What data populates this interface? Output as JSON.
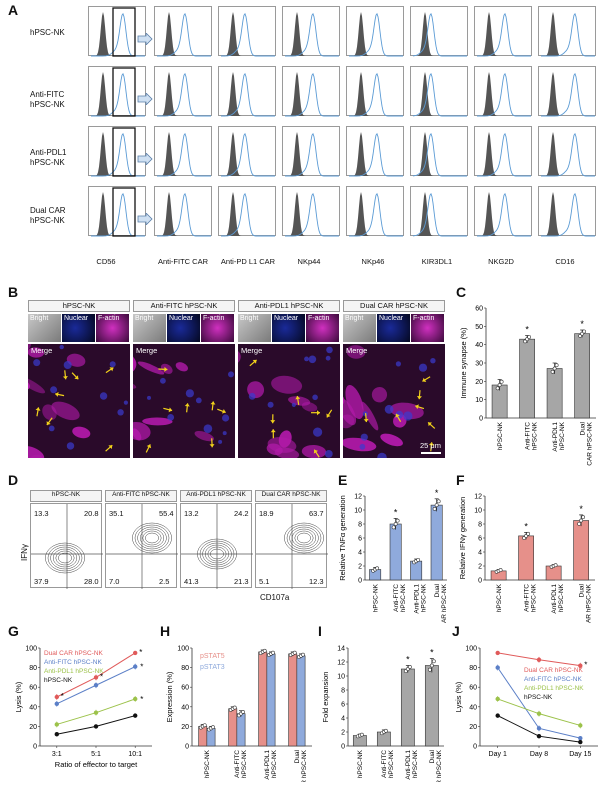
{
  "panel_labels": [
    "A",
    "B",
    "C",
    "D",
    "E",
    "F",
    "G",
    "H",
    "I",
    "J"
  ],
  "panelA": {
    "rows": [
      "hPSC-NK",
      "Anti-FITC\nhPSC-NK",
      "Anti-PDL1\nhPSC-NK",
      "Dual CAR\nhPSC-NK"
    ],
    "columns": [
      "CD56",
      "Anti-FITC CAR",
      "Anti-PD L1 CAR",
      "NKp44",
      "NKp46",
      "KIR3DL1",
      "NKG2D",
      "CD16"
    ],
    "arrow_icon": "right-arrow-icon",
    "colors": {
      "filled": "#555555",
      "line": "#5b9bd5"
    }
  },
  "panelB": {
    "columns": [
      "hPSC-NK",
      "Anti-FITC hPSC-NK",
      "Anti-PDL1 hPSC-NK",
      "Dual CAR hPSC-NK"
    ],
    "sub_labels": [
      "Bright",
      "Nuclear",
      "F-actin"
    ],
    "merge_label": "Merge",
    "scale_bar": "25 μm",
    "colors": {
      "magenta": "#b01aa8",
      "bg": "#2a0a2a",
      "nuclear": "#0a1a66",
      "arrow": "#f2d21b"
    }
  },
  "panelD": {
    "columns": [
      "hPSC-NK",
      "Anti-FITC hPSC-NK",
      "Anti-PDL1 hPSC-NK",
      "Dual CAR hPSC-NK"
    ],
    "quadrants": [
      [
        "13.3",
        "20.8",
        "37.9",
        "28.0"
      ],
      [
        "35.1",
        "55.4",
        "7.0",
        "2.5"
      ],
      [
        "13.2",
        "24.2",
        "41.3",
        "21.3"
      ],
      [
        "18.9",
        "63.7",
        "5.1",
        "12.3"
      ]
    ],
    "ylabel": "IFNγ",
    "xlabel": "CD107a"
  },
  "chart_data": [
    {
      "panel": "C",
      "type": "bar",
      "categories": [
        "hPSC-NK",
        "Anti-FITC hPSC-NK",
        "Anti-PDL1 hPSC-NK",
        "Dual CAR hPSC-NK"
      ],
      "values": [
        18,
        43,
        27,
        46
      ],
      "errors": [
        3,
        2,
        3,
        2
      ],
      "significance": [
        "",
        "*",
        "",
        "*"
      ],
      "ylabel": "Immune synapse (%)",
      "ylim": [
        0,
        60
      ],
      "yticks": [
        0,
        10,
        20,
        30,
        40,
        50,
        60
      ],
      "color": "#a6a6a6"
    },
    {
      "panel": "E",
      "type": "bar",
      "categories": [
        "hPSC-NK",
        "Anti-FITC hPSC-NK",
        "Anti-PDL1 hPSC-NK",
        "Dual CAR hPSC-NK"
      ],
      "values": [
        1.5,
        8.0,
        2.7,
        10.7
      ],
      "errors": [
        0.3,
        0.8,
        0.3,
        0.9
      ],
      "significance": [
        "",
        "*",
        "",
        "*"
      ],
      "ylabel": "Relative TNFα generation",
      "ylim": [
        0,
        12
      ],
      "yticks": [
        0,
        2,
        4,
        6,
        8,
        10,
        12
      ],
      "color": "#8faadc"
    },
    {
      "panel": "F",
      "type": "bar",
      "categories": [
        "hPSC-NK",
        "Anti-FITC hPSC-NK",
        "Anti-PDL1 hPSC-NK",
        "Dual CAR hPSC-NK"
      ],
      "values": [
        1.3,
        6.3,
        2.0,
        8.5
      ],
      "errors": [
        0.2,
        0.5,
        0.2,
        0.8
      ],
      "significance": [
        "",
        "*",
        "",
        "*"
      ],
      "ylabel": "Relative IFNγ generation",
      "ylim": [
        0,
        12
      ],
      "yticks": [
        0,
        2,
        4,
        6,
        8,
        10,
        12
      ],
      "color": "#e6908a"
    },
    {
      "panel": "G",
      "type": "line",
      "categories": [
        "3:1",
        "5:1",
        "10:1"
      ],
      "series": [
        {
          "name": "Dual CAR hPSC-NK",
          "values": [
            50,
            70,
            95
          ],
          "errors": [
            3,
            3,
            2
          ],
          "color": "#e05a5a"
        },
        {
          "name": "Anti-FITC hPSC-NK",
          "values": [
            43,
            62,
            81
          ],
          "errors": [
            3,
            3,
            3
          ],
          "color": "#5b7fc7"
        },
        {
          "name": "Anti-PDL1 hPSC-NK",
          "values": [
            22,
            34,
            48
          ],
          "errors": [
            3,
            3,
            3
          ],
          "color": "#9cc24a"
        },
        {
          "name": "hPSC-NK",
          "values": [
            12,
            20,
            31
          ],
          "errors": [
            2,
            2,
            2
          ],
          "color": "#111111"
        }
      ],
      "significance": [
        "*",
        "*",
        "*"
      ],
      "xlabel": "Ratio of effector to target",
      "ylabel": "Lysis (%)",
      "ylim": [
        0,
        100
      ],
      "yticks": [
        0,
        20,
        40,
        60,
        80,
        100
      ]
    },
    {
      "panel": "H",
      "type": "bar",
      "categories": [
        "hPSC-NK",
        "Anti-FITC hPSC-NK",
        "Anti-PDL1 hPSC-NK",
        "Dual CAR hPSC-NK"
      ],
      "series": [
        {
          "name": "pSTAT5",
          "values": [
            20,
            38,
            96,
            94
          ],
          "errors": [
            2,
            2,
            2,
            2
          ],
          "color": "#e6908a"
        },
        {
          "name": "pSTAT3",
          "values": [
            18,
            33,
            94,
            92
          ],
          "errors": [
            2,
            3,
            2,
            2
          ],
          "color": "#8faadc"
        }
      ],
      "ylabel": "Expression (%)",
      "ylim": [
        0,
        100
      ],
      "yticks": [
        0,
        20,
        40,
        60,
        80,
        100
      ]
    },
    {
      "panel": "I",
      "type": "bar",
      "categories": [
        "hPSC-NK",
        "Anti-FITC hPSC-NK",
        "Anti-PDL1 hPSC-NK",
        "Dual CAR hPSC-NK"
      ],
      "values": [
        1.5,
        2.0,
        11.0,
        11.5
      ],
      "errors": [
        0.2,
        0.3,
        0.5,
        1.0
      ],
      "significance": [
        "",
        "",
        "*",
        "*"
      ],
      "ylabel": "Fold expansion",
      "ylim": [
        0,
        14
      ],
      "yticks": [
        0,
        2,
        4,
        6,
        8,
        10,
        12,
        14
      ],
      "color": "#a6a6a6"
    },
    {
      "panel": "J",
      "type": "line",
      "categories": [
        "Day 1",
        "Day 8",
        "Day 15"
      ],
      "series": [
        {
          "name": "Dual CAR hPSC-NK",
          "values": [
            95,
            88,
            82
          ],
          "errors": [
            2,
            3,
            3
          ],
          "color": "#e05a5a"
        },
        {
          "name": "Anti-FITC hPSC-NK",
          "values": [
            80,
            18,
            8
          ],
          "errors": [
            3,
            3,
            2
          ],
          "color": "#5b7fc7"
        },
        {
          "name": "Anti-PDL1 hPSC-NK",
          "values": [
            48,
            33,
            21
          ],
          "errors": [
            3,
            3,
            3
          ],
          "color": "#9cc24a"
        },
        {
          "name": "hPSC-NK",
          "values": [
            31,
            10,
            4
          ],
          "errors": [
            2,
            2,
            2
          ],
          "color": "#111111"
        }
      ],
      "significance": [
        "",
        "",
        "*"
      ],
      "ylabel": "Lysis (%)",
      "ylim": [
        0,
        100
      ],
      "yticks": [
        0,
        20,
        40,
        60,
        80,
        100
      ]
    }
  ]
}
